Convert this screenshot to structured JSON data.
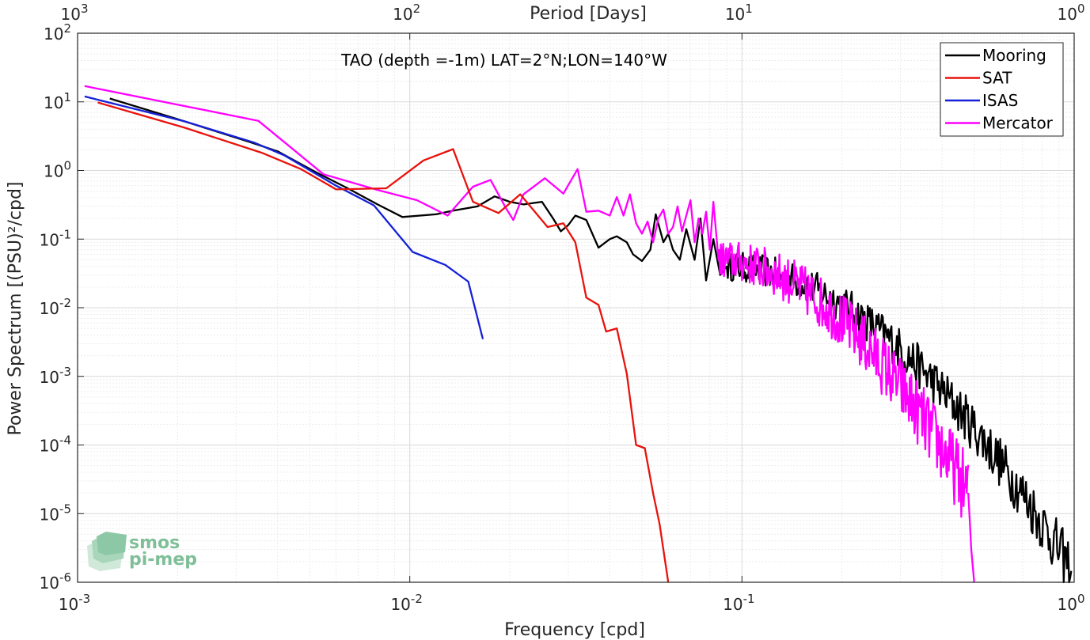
{
  "chart_data": {
    "type": "line",
    "title": "TAO (depth =-1m) LAT=2°N;LON=140°W",
    "xlabel": "Frequency [cpd]",
    "ylabel": "Power Spectrum [(PSU)²/cpd]",
    "top_xlabel": "Period [Days]",
    "x_scale": "log",
    "y_scale": "log",
    "xlim": [
      0.001,
      1
    ],
    "ylim": [
      1e-06,
      100
    ],
    "grid": true,
    "legend_position": "top-right",
    "x_ticks": [
      {
        "value": 0.001,
        "base": "10",
        "exp": "-3"
      },
      {
        "value": 0.01,
        "base": "10",
        "exp": "-2"
      },
      {
        "value": 0.1,
        "base": "10",
        "exp": "-1"
      },
      {
        "value": 1,
        "base": "10",
        "exp": "0"
      }
    ],
    "top_ticks": [
      {
        "value": 0.001,
        "base": "10",
        "exp": "3"
      },
      {
        "value": 0.01,
        "base": "10",
        "exp": "2"
      },
      {
        "value": 0.1,
        "base": "10",
        "exp": "1"
      },
      {
        "value": 1,
        "base": "10",
        "exp": "0"
      }
    ],
    "y_ticks": [
      {
        "value": 1e-06,
        "base": "10",
        "exp": "-6"
      },
      {
        "value": 1e-05,
        "base": "10",
        "exp": "-5"
      },
      {
        "value": 0.0001,
        "base": "10",
        "exp": "-4"
      },
      {
        "value": 0.001,
        "base": "10",
        "exp": "-3"
      },
      {
        "value": 0.01,
        "base": "10",
        "exp": "-2"
      },
      {
        "value": 0.1,
        "base": "10",
        "exp": "-1"
      },
      {
        "value": 1,
        "base": "10",
        "exp": "0"
      },
      {
        "value": 10,
        "base": "10",
        "exp": "1"
      },
      {
        "value": 100,
        "base": "10",
        "exp": "2"
      }
    ],
    "series": [
      {
        "name": "Mooring",
        "color": "#000000",
        "noise_tail": {
          "from_x": 0.09,
          "to_x": 0.98,
          "start_y": 0.04,
          "end_y": 1.5e-06,
          "jitter_decades": 0.35
        },
        "points": [
          [
            0.00125,
            11.2
          ],
          [
            0.002,
            5.6
          ],
          [
            0.0033,
            2.6
          ],
          [
            0.004,
            1.9
          ],
          [
            0.0052,
            0.95
          ],
          [
            0.0065,
            0.55
          ],
          [
            0.008,
            0.32
          ],
          [
            0.0095,
            0.21
          ],
          [
            0.012,
            0.23
          ],
          [
            0.0135,
            0.26
          ],
          [
            0.016,
            0.3
          ],
          [
            0.018,
            0.42
          ],
          [
            0.02,
            0.35
          ],
          [
            0.022,
            0.32
          ],
          [
            0.025,
            0.35
          ],
          [
            0.027,
            0.2
          ],
          [
            0.0285,
            0.13
          ],
          [
            0.03,
            0.16
          ],
          [
            0.0315,
            0.22
          ],
          [
            0.034,
            0.19
          ],
          [
            0.037,
            0.075
          ],
          [
            0.04,
            0.1
          ],
          [
            0.042,
            0.11
          ],
          [
            0.045,
            0.09
          ],
          [
            0.047,
            0.06
          ],
          [
            0.05,
            0.048
          ],
          [
            0.053,
            0.07
          ],
          [
            0.055,
            0.23
          ],
          [
            0.058,
            0.09
          ],
          [
            0.06,
            0.12
          ],
          [
            0.062,
            0.07
          ],
          [
            0.065,
            0.05
          ],
          [
            0.068,
            0.14
          ],
          [
            0.072,
            0.05
          ],
          [
            0.075,
            0.2
          ],
          [
            0.078,
            0.025
          ],
          [
            0.082,
            0.1
          ],
          [
            0.086,
            0.03
          ],
          [
            0.09,
            0.04
          ]
        ]
      },
      {
        "name": "SAT",
        "color": "#e8120c",
        "points": [
          [
            0.00115,
            9.8
          ],
          [
            0.0021,
            4.2
          ],
          [
            0.0036,
            1.8
          ],
          [
            0.0047,
            1.05
          ],
          [
            0.006,
            0.53
          ],
          [
            0.0085,
            0.55
          ],
          [
            0.011,
            1.4
          ],
          [
            0.0135,
            2.05
          ],
          [
            0.0155,
            0.35
          ],
          [
            0.0185,
            0.24
          ],
          [
            0.0215,
            0.45
          ],
          [
            0.026,
            0.15
          ],
          [
            0.029,
            0.17
          ],
          [
            0.0315,
            0.09
          ],
          [
            0.034,
            0.014
          ],
          [
            0.037,
            0.011
          ],
          [
            0.039,
            0.0045
          ],
          [
            0.042,
            0.005
          ],
          [
            0.045,
            0.0011
          ],
          [
            0.048,
            0.0001
          ],
          [
            0.051,
            9e-05
          ],
          [
            0.054,
            2e-05
          ],
          [
            0.0565,
            7e-06
          ],
          [
            0.06,
            1e-06
          ]
        ]
      },
      {
        "name": "ISAS",
        "color": "#1521d8",
        "points": [
          [
            0.00105,
            12
          ],
          [
            0.0021,
            5.2
          ],
          [
            0.0034,
            2.55
          ],
          [
            0.0042,
            1.65
          ],
          [
            0.006,
            0.6
          ],
          [
            0.0078,
            0.31
          ],
          [
            0.0102,
            0.065
          ],
          [
            0.0128,
            0.042
          ],
          [
            0.015,
            0.024
          ],
          [
            0.0166,
            0.0035
          ]
        ]
      },
      {
        "name": "Mercator",
        "color": "#ff00ff",
        "noise_tail": {
          "from_x": 0.085,
          "to_x": 0.48,
          "start_y": 0.05,
          "end_y": 2e-05,
          "jitter_decades": 0.45
        },
        "points": [
          [
            0.00105,
            17
          ],
          [
            0.0035,
            5.3
          ],
          [
            0.0055,
            0.88
          ],
          [
            0.008,
            0.52
          ],
          [
            0.0105,
            0.37
          ],
          [
            0.013,
            0.22
          ],
          [
            0.0155,
            0.58
          ],
          [
            0.0175,
            0.73
          ],
          [
            0.0195,
            0.28
          ],
          [
            0.0205,
            0.19
          ],
          [
            0.022,
            0.45
          ],
          [
            0.0255,
            0.77
          ],
          [
            0.029,
            0.46
          ],
          [
            0.032,
            1.05
          ],
          [
            0.034,
            0.25
          ],
          [
            0.037,
            0.26
          ],
          [
            0.04,
            0.22
          ],
          [
            0.042,
            0.41
          ],
          [
            0.044,
            0.22
          ],
          [
            0.046,
            0.45
          ],
          [
            0.048,
            0.17
          ],
          [
            0.05,
            0.12
          ],
          [
            0.052,
            0.18
          ],
          [
            0.054,
            0.09
          ],
          [
            0.056,
            0.2
          ],
          [
            0.058,
            0.27
          ],
          [
            0.06,
            0.12
          ],
          [
            0.062,
            0.15
          ],
          [
            0.064,
            0.3
          ],
          [
            0.066,
            0.13
          ],
          [
            0.068,
            0.22
          ],
          [
            0.07,
            0.37
          ],
          [
            0.072,
            0.09
          ],
          [
            0.074,
            0.2
          ],
          [
            0.076,
            0.12
          ],
          [
            0.078,
            0.25
          ],
          [
            0.08,
            0.07
          ],
          [
            0.082,
            0.35
          ],
          [
            0.085,
            0.05
          ]
        ]
      },
      {
        "name": "Mercator-tail",
        "color": "#ff00ff",
        "legend": false,
        "points": [
          [
            0.48,
            2e-05
          ],
          [
            0.485,
            8e-06
          ],
          [
            0.49,
            3e-06
          ],
          [
            0.5,
            1e-06
          ]
        ]
      }
    ],
    "legend": [
      "Mooring",
      "SAT",
      "ISAS",
      "Mercator"
    ]
  },
  "watermark": {
    "line1": "smos",
    "line2": "pi-mep"
  }
}
